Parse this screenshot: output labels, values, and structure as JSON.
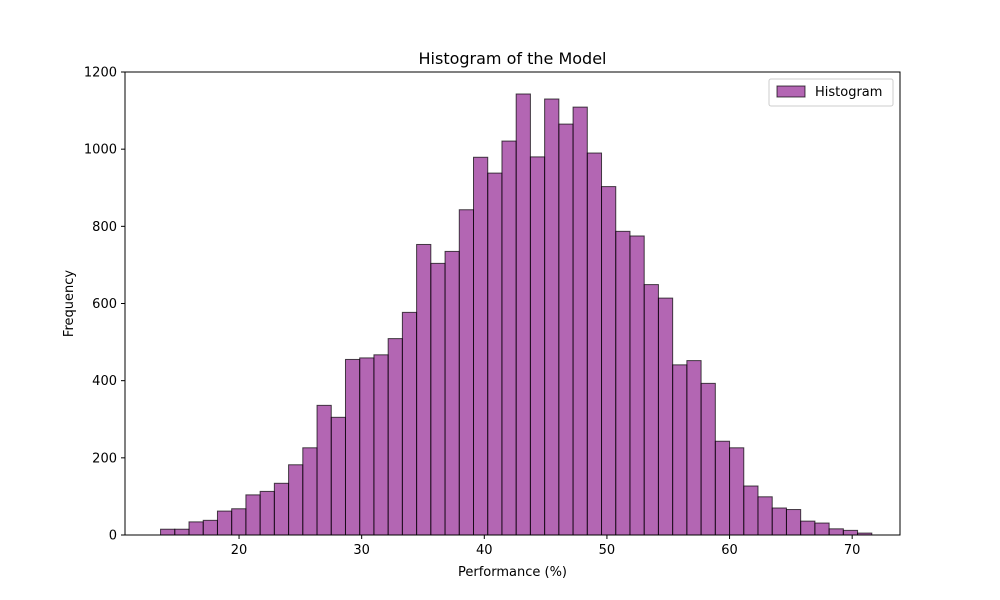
{
  "chart_data": {
    "type": "bar",
    "title": "Histogram of the Model",
    "xlabel": "Performance (%)",
    "ylabel": "Frequency",
    "xlim": [
      10.7,
      73.9
    ],
    "ylim": [
      0,
      1200
    ],
    "xticks": [
      20,
      30,
      40,
      50,
      60,
      70
    ],
    "yticks": [
      0,
      200,
      400,
      600,
      800,
      1000,
      1200
    ],
    "grid": false,
    "legend_position": "top-right",
    "series": [
      {
        "name": "Histogram",
        "color": "#800080",
        "bin_edges": [
          13.6,
          14.76,
          15.92,
          17.08,
          18.24,
          19.4,
          20.56,
          21.72,
          22.88,
          24.04,
          25.2,
          26.36,
          27.52,
          28.68,
          29.84,
          31.0,
          32.16,
          33.32,
          34.48,
          35.64,
          36.8,
          37.96,
          39.12,
          40.28,
          41.44,
          42.6,
          43.76,
          44.92,
          46.08,
          47.24,
          48.4,
          49.56,
          50.72,
          51.88,
          53.04,
          54.2,
          55.36,
          56.52,
          57.68,
          58.84,
          60.0,
          61.16,
          62.32,
          63.48,
          64.64,
          65.8,
          66.96,
          68.12,
          69.28,
          70.44,
          71.6
        ],
        "values": [
          15,
          15,
          34,
          38,
          62,
          68,
          104,
          113,
          134,
          182,
          226,
          336,
          305,
          455,
          459,
          467,
          509,
          577,
          753,
          704,
          735,
          843,
          979,
          938,
          1021,
          1143,
          980,
          1130,
          1065,
          1109,
          990,
          903,
          787,
          775,
          649,
          614,
          441,
          452,
          393,
          243,
          226,
          127,
          99,
          70,
          66,
          36,
          31,
          16,
          12,
          5
        ]
      }
    ]
  }
}
